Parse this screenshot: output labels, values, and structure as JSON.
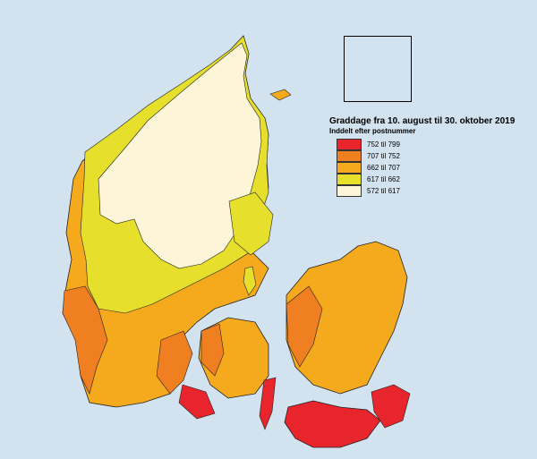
{
  "legend": {
    "title": "Graddage fra 10. august til 30. oktober 2019",
    "subtitle": "Inddelt efter postnummer",
    "items": [
      {
        "label": "752 til 799",
        "color": "#e8242c"
      },
      {
        "label": "707 til 752",
        "color": "#f07f22"
      },
      {
        "label": "662 til 707",
        "color": "#f5aa1e"
      },
      {
        "label": "617 til 662",
        "color": "#e6e02c"
      },
      {
        "label": "572 til 617",
        "color": "#fcf5d8"
      }
    ]
  },
  "colors": {
    "sea": "#d2e3ef",
    "border": "#222222"
  }
}
